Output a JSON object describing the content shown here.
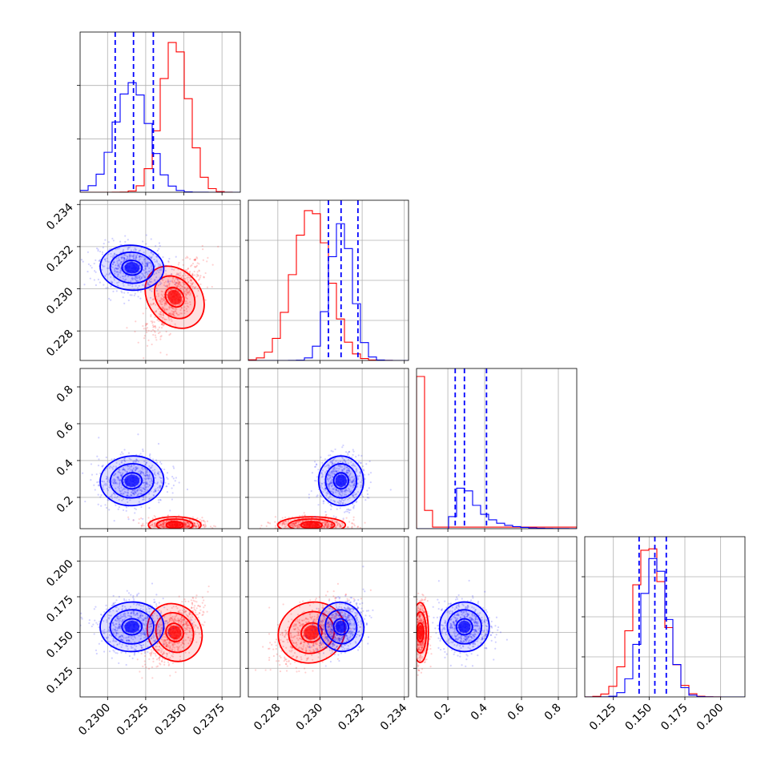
{
  "figure": {
    "type": "corner-plot",
    "colors": {
      "series_a": "#ff0000",
      "series_b": "#0000ff"
    }
  },
  "chart_data": {
    "type": "corner",
    "grid": true,
    "parameters": [
      {
        "range": [
          0.2282,
          0.2387
        ],
        "ticks": [
          0.23,
          0.2325,
          0.235,
          0.2375
        ],
        "tick_labels": [
          "0.2300",
          "0.2325",
          "0.2350",
          "0.2375"
        ],
        "hist_ticks": [
          1,
          2
        ]
      },
      {
        "range": [
          0.2266,
          0.2342
        ],
        "ticks": [
          0.228,
          0.23,
          0.232,
          0.234
        ],
        "tick_labels": [
          "0.228",
          "0.230",
          "0.232",
          "0.234"
        ],
        "hist_ticks": [
          1,
          2,
          3
        ]
      },
      {
        "range": [
          0.03,
          0.9
        ],
        "ticks": [
          0.2,
          0.4,
          0.6,
          0.8
        ],
        "tick_labels": [
          "0.2",
          "0.4",
          "0.6",
          "0.8"
        ],
        "hist_ticks": []
      },
      {
        "range": [
          0.105,
          0.217
        ],
        "ticks": [
          0.125,
          0.15,
          0.175,
          0.2
        ],
        "tick_labels": [
          "0.125",
          "0.150",
          "0.175",
          "0.200"
        ],
        "hist_ticks": [
          1,
          2,
          3
        ]
      }
    ],
    "series": [
      {
        "color": "#ff0000",
        "means": [
          0.2344,
          0.2296,
          0.05,
          0.15
        ],
        "sigmas": [
          0.0009,
          0.00085,
          0.018,
          0.011
        ],
        "hist_ymax": [
          1.0,
          1.0,
          1.0,
          1.0
        ]
      },
      {
        "color": "#0000ff",
        "means": [
          0.2316,
          0.231,
          0.29,
          0.154
        ],
        "sigmas": [
          0.0011,
          0.00055,
          0.07,
          0.009
        ],
        "hist_ymax": [
          0.72,
          0.9,
          0.32,
          0.92
        ]
      }
    ],
    "quantile_lines": [
      {
        "param": 0,
        "values": [
          0.2305,
          0.2317,
          0.233
        ]
      },
      {
        "param": 1,
        "values": [
          0.2304,
          0.231,
          0.2318
        ]
      },
      {
        "param": 2,
        "values": [
          0.24,
          0.29,
          0.41
        ]
      },
      {
        "param": 3,
        "values": [
          0.143,
          0.154,
          0.162
        ]
      }
    ],
    "correlations": {
      "series_a": {
        "0-1": 0.72,
        "0-2": 0.0,
        "1-2": 0.0,
        "0-3": 0.65,
        "1-3": 0.5,
        "2-3": 0.0
      },
      "series_b": {
        "0-1": -0.1,
        "0-2": 0.1,
        "1-2": 0.05,
        "0-3": 0.05,
        "1-3": 0.35,
        "2-3": 0.0
      }
    }
  }
}
